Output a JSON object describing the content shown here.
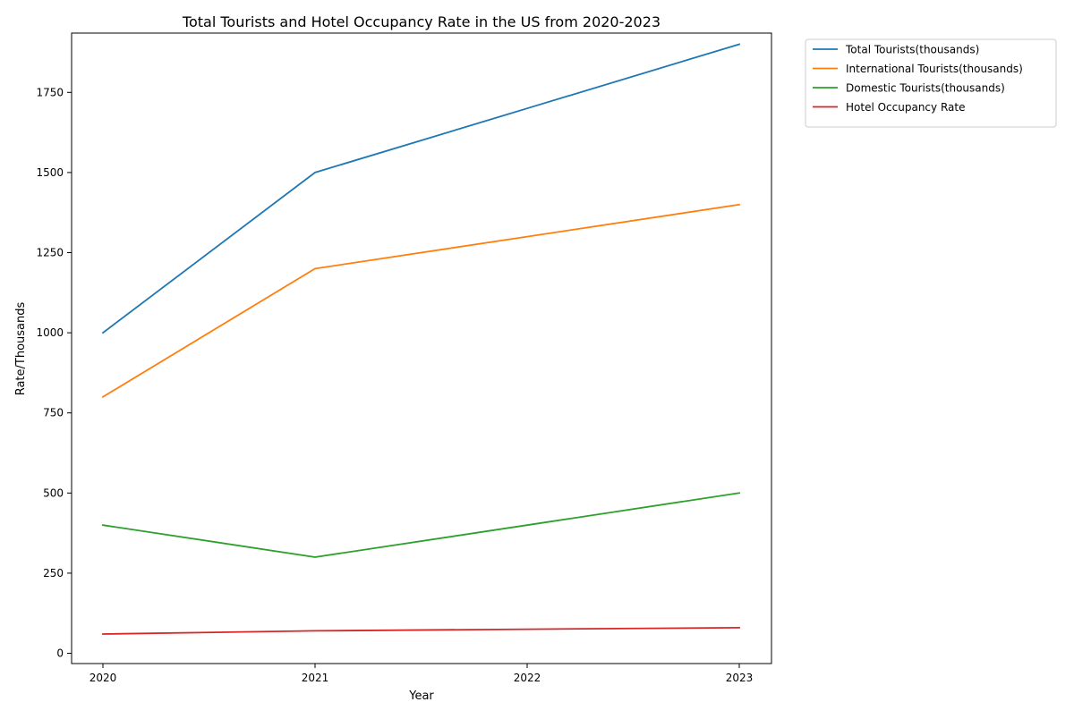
{
  "chart_data": {
    "type": "line",
    "title": "Total Tourists and Hotel Occupancy Rate in the US from 2020-2023",
    "xlabel": "Year",
    "ylabel": "Rate/Thousands",
    "x": [
      "2020",
      "2021",
      "2022",
      "2023"
    ],
    "y_ticks": [
      "0",
      "250",
      "500",
      "750",
      "1000",
      "1250",
      "1500",
      "1750"
    ],
    "ylim": [
      -32,
      1935
    ],
    "grid": false,
    "legend_position": "outside-top-right",
    "series": [
      {
        "name": "Total Tourists(thousands)",
        "color": "#1f77b4",
        "values": [
          1000,
          1500,
          1700,
          1900
        ]
      },
      {
        "name": "International Tourists(thousands)",
        "color": "#ff7f0e",
        "values": [
          800,
          1200,
          1300,
          1400
        ]
      },
      {
        "name": "Domestic Tourists(thousands)",
        "color": "#2ca02c",
        "values": [
          400,
          300,
          400,
          500
        ]
      },
      {
        "name": "Hotel Occupancy Rate",
        "color": "#d62728",
        "values": [
          60,
          70,
          75,
          80
        ]
      }
    ]
  }
}
